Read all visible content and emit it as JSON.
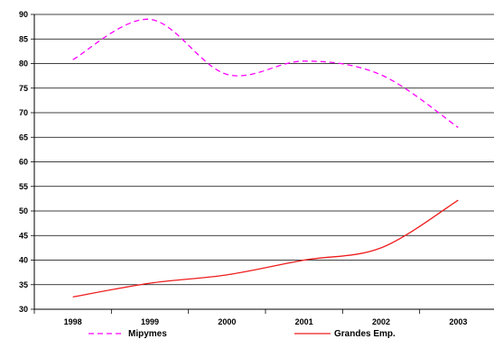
{
  "chart_data": {
    "type": "line",
    "title": "",
    "xlabel": "",
    "ylabel": "",
    "categories": [
      "1998",
      "1999",
      "2000",
      "2001",
      "2002",
      "2003"
    ],
    "ylim": [
      30,
      90
    ],
    "yticks": [
      30,
      35,
      40,
      45,
      50,
      55,
      60,
      65,
      70,
      75,
      80,
      85,
      90
    ],
    "grid": "horizontal",
    "smooth": true,
    "legend_position": "bottom",
    "series": [
      {
        "name": "Mipymes",
        "values": [
          80.8,
          89.0,
          77.8,
          80.5,
          77.7,
          67.0
        ],
        "color": "#ff00ff",
        "style": "dashed"
      },
      {
        "name": "Grandes Emp.",
        "values": [
          32.5,
          35.3,
          37.0,
          40.0,
          42.5,
          52.2
        ],
        "color": "#ee1c1c",
        "style": "solid"
      }
    ]
  }
}
